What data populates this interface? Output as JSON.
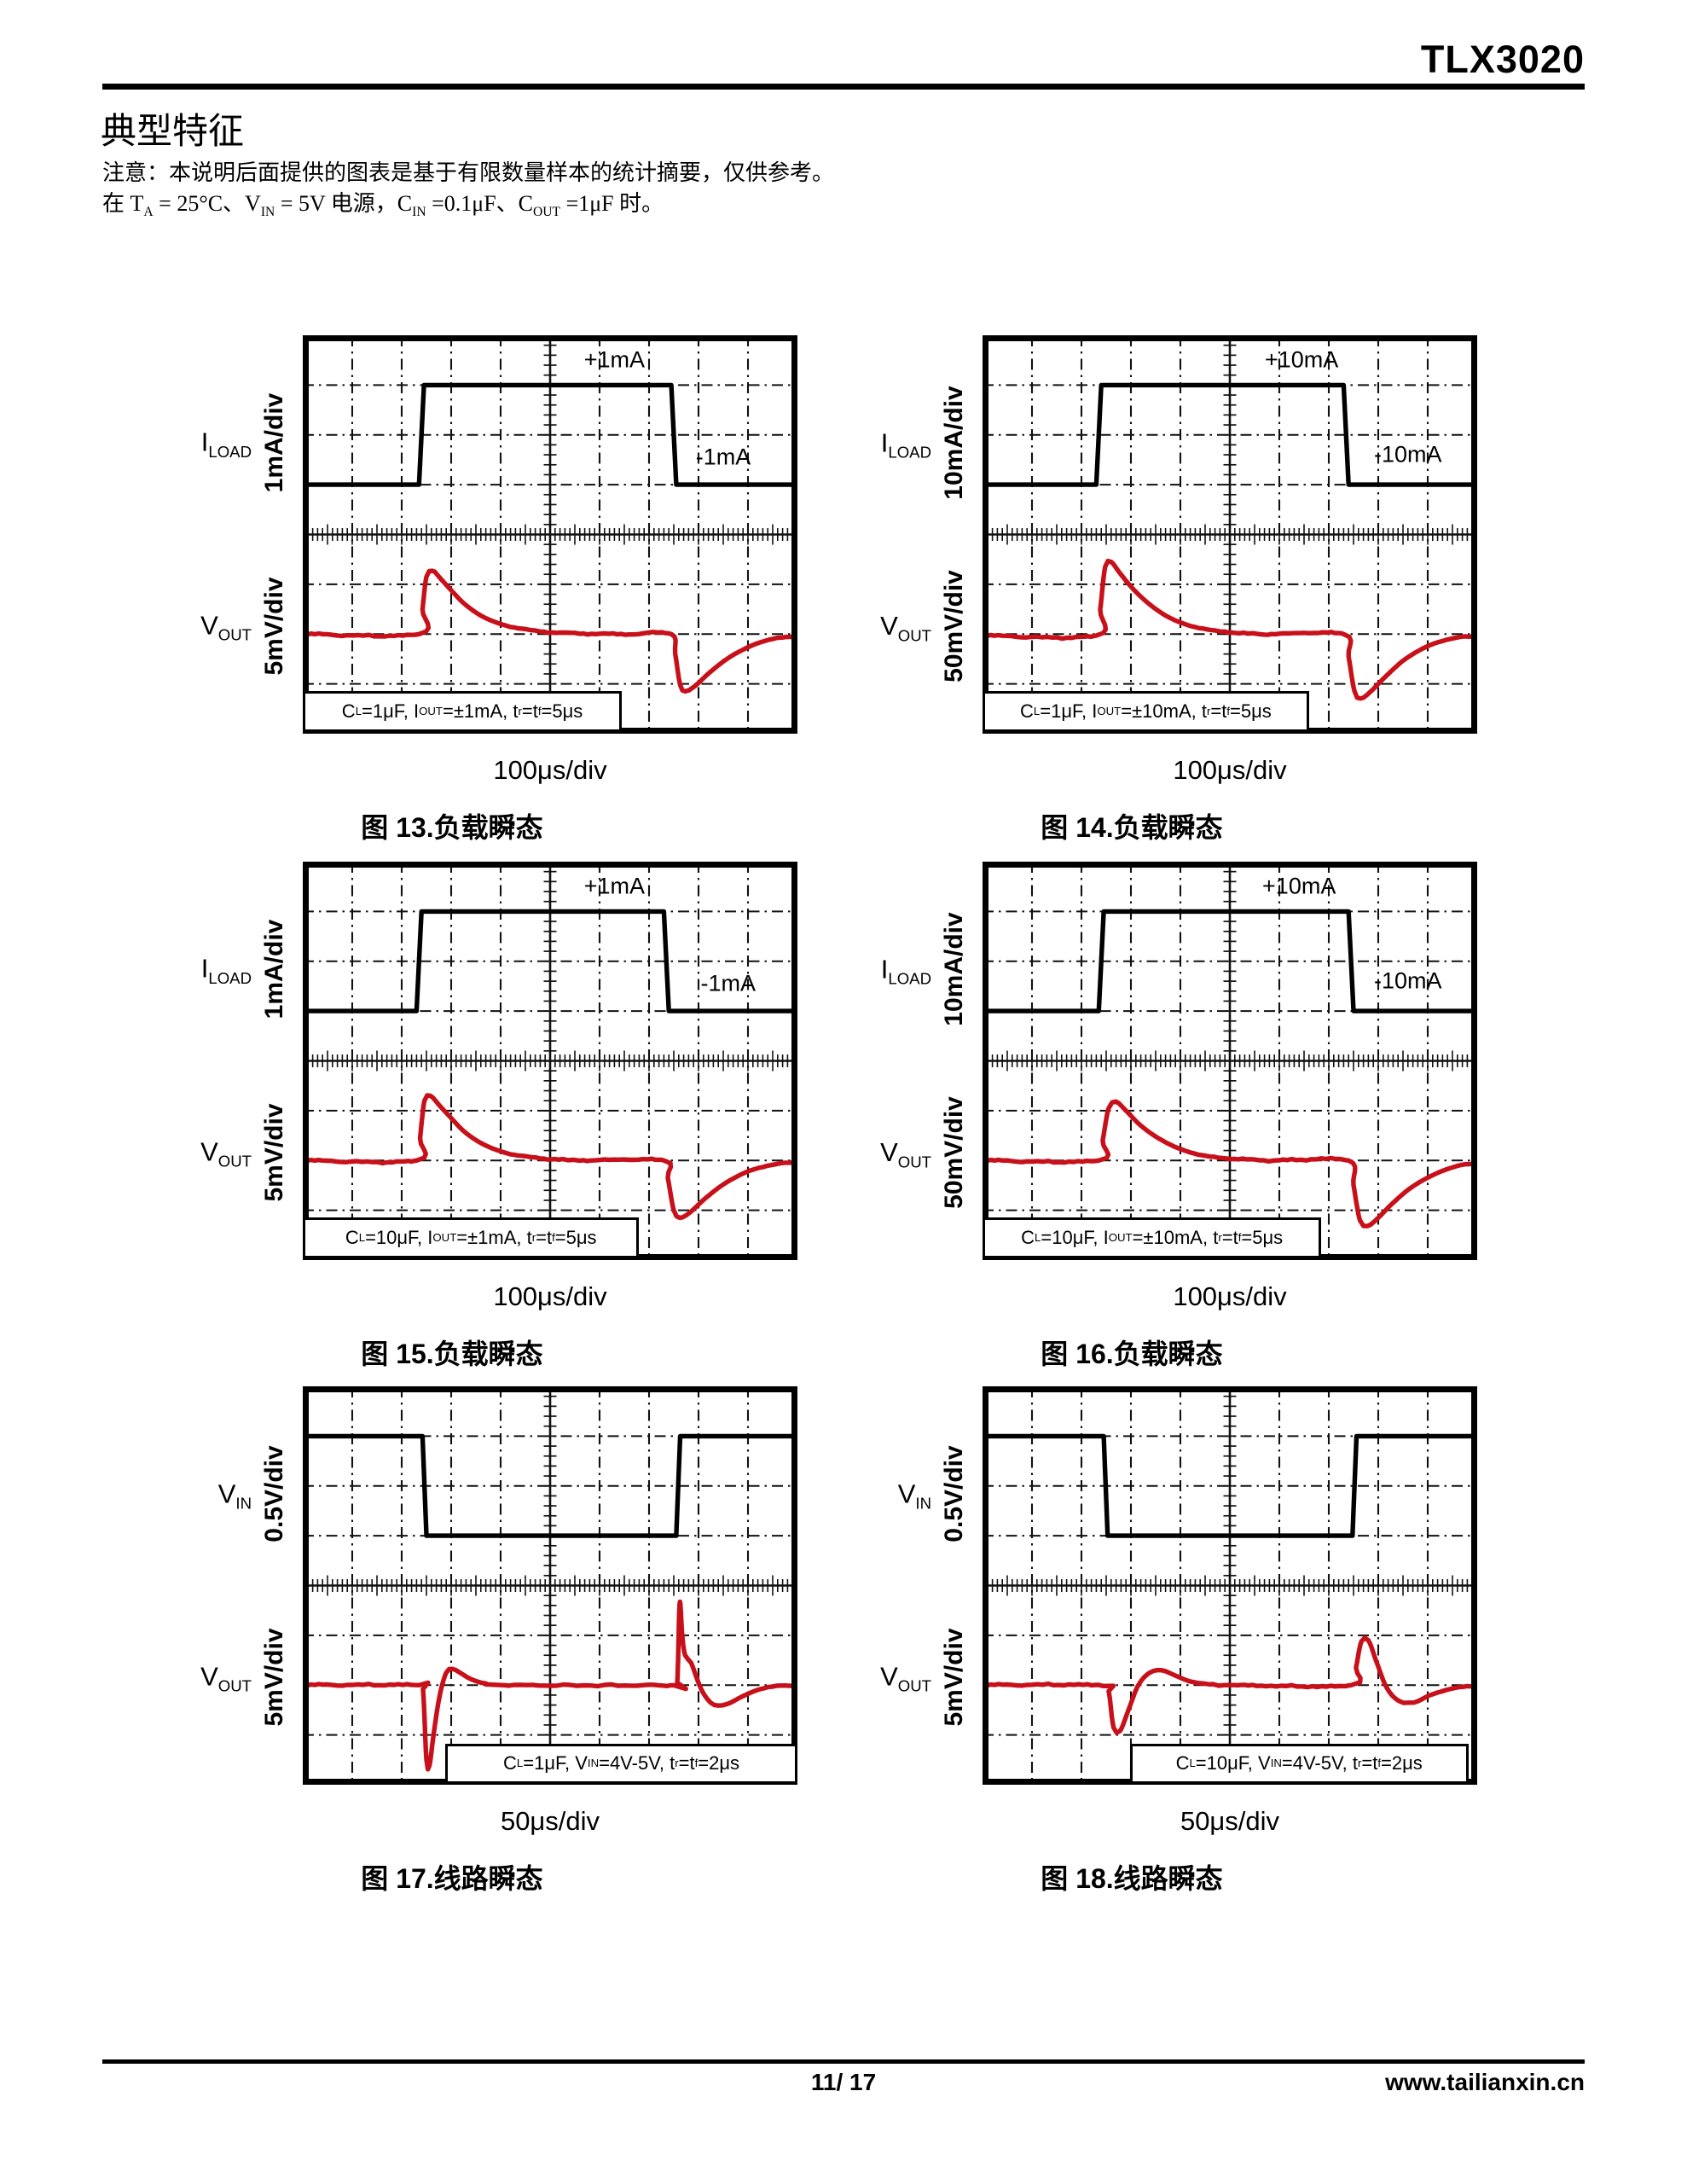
{
  "page": {
    "product": "TLX3020",
    "section_title": "典型特征",
    "note_line1": "注意：本说明后面提供的图表是基于有限数量样本的统计摘要，仅供参考。",
    "note_line2": "在 T_{A} = 25°C、V_{IN} = 5V 电源，C_{IN} =0.1μF、C_{OUT} =1μF 时。",
    "footer": {
      "page_number": "11/ 17",
      "website": "www.tailianxin.cn"
    }
  },
  "style": {
    "trace_red": "#c8101a",
    "trace_black": "#000000",
    "grid_color": "#111111",
    "background": "#ffffff"
  },
  "chart_data": [
    {
      "type": "line",
      "subtype": "oscilloscope",
      "caption": "图 13.负载瞬态",
      "x_scale": "100μs/div",
      "x_divisions": 10,
      "y_divisions": 8,
      "units": "grid divisions",
      "channels": [
        {
          "label": "I_{LOAD}",
          "scale": "1mA/div"
        },
        {
          "label": "V_{OUT}",
          "scale": "5mV/div"
        }
      ],
      "level_labels": [
        {
          "text": "+1mA",
          "x": 6.3,
          "y": 0.5
        },
        {
          "text": "-1mA",
          "x": 8.5,
          "y": 2.45
        }
      ],
      "annotation": {
        "text": "C_{L}=1μF, I_{OUT}=±1mA, t_{r}=t_{f}=5μs",
        "x0": 0,
        "x1": 6.45,
        "y0": 7.15,
        "y1": 7.96
      },
      "series": [
        {
          "name": "I_LOAD",
          "color": "black",
          "smooth": false,
          "noise": false,
          "points": [
            [
              0,
              3
            ],
            [
              2.35,
              3
            ],
            [
              2.45,
              1
            ],
            [
              7.45,
              1
            ],
            [
              7.55,
              3
            ],
            [
              10,
              3
            ]
          ]
        },
        {
          "name": "V_OUT",
          "color": "red",
          "smooth": true,
          "noise": true,
          "points": [
            [
              0,
              6
            ],
            [
              2.35,
              6
            ],
            [
              2.42,
              5.5
            ],
            [
              2.5,
              4.85
            ],
            [
              2.62,
              4.72
            ],
            [
              2.78,
              4.88
            ],
            [
              3.0,
              5.12
            ],
            [
              3.3,
              5.42
            ],
            [
              3.7,
              5.68
            ],
            [
              4.2,
              5.85
            ],
            [
              4.8,
              5.94
            ],
            [
              5.6,
              5.99
            ],
            [
              6.6,
              6
            ],
            [
              7.45,
              6
            ],
            [
              7.53,
              6.4
            ],
            [
              7.63,
              7.02
            ],
            [
              7.73,
              7.15
            ],
            [
              7.92,
              7.05
            ],
            [
              8.25,
              6.75
            ],
            [
              8.65,
              6.45
            ],
            [
              9.15,
              6.2
            ],
            [
              9.6,
              6.08
            ],
            [
              10,
              6.03
            ]
          ]
        }
      ]
    },
    {
      "type": "line",
      "subtype": "oscilloscope",
      "caption": "图 14.负载瞬态",
      "x_scale": "100μs/div",
      "x_divisions": 10,
      "y_divisions": 8,
      "units": "grid divisions",
      "channels": [
        {
          "label": "I_{LOAD}",
          "scale": "10mA/div"
        },
        {
          "label": "V_{OUT}",
          "scale": "50mV/div"
        }
      ],
      "level_labels": [
        {
          "text": "+10mA",
          "x": 6.45,
          "y": 0.5
        },
        {
          "text": "-10mA",
          "x": 8.6,
          "y": 2.4
        }
      ],
      "annotation": {
        "text": "C_{L}=1μF, I_{OUT}=±10mA, t_{r}=t_{f}=5μs",
        "x0": 0,
        "x1": 6.6,
        "y0": 7.15,
        "y1": 7.96
      },
      "series": [
        {
          "name": "I_LOAD",
          "color": "black",
          "smooth": false,
          "noise": false,
          "points": [
            [
              0,
              3
            ],
            [
              2.3,
              3
            ],
            [
              2.4,
              1
            ],
            [
              7.3,
              1
            ],
            [
              7.4,
              3
            ],
            [
              10,
              3
            ]
          ]
        },
        {
          "name": "V_OUT",
          "color": "red",
          "smooth": true,
          "noise": true,
          "points": [
            [
              0,
              6.03
            ],
            [
              2.3,
              6.03
            ],
            [
              2.38,
              5.5
            ],
            [
              2.48,
              4.65
            ],
            [
              2.6,
              4.55
            ],
            [
              2.78,
              4.78
            ],
            [
              3.05,
              5.1
            ],
            [
              3.4,
              5.42
            ],
            [
              3.8,
              5.68
            ],
            [
              4.3,
              5.86
            ],
            [
              4.9,
              5.95
            ],
            [
              5.7,
              6
            ],
            [
              7.3,
              6
            ],
            [
              7.4,
              6.45
            ],
            [
              7.52,
              7.15
            ],
            [
              7.64,
              7.3
            ],
            [
              7.85,
              7.15
            ],
            [
              8.15,
              6.85
            ],
            [
              8.55,
              6.5
            ],
            [
              9.05,
              6.22
            ],
            [
              9.55,
              6.08
            ],
            [
              10,
              6.03
            ]
          ]
        }
      ]
    },
    {
      "type": "line",
      "subtype": "oscilloscope",
      "caption": "图 15.负载瞬态",
      "x_scale": "100μs/div",
      "x_divisions": 10,
      "y_divisions": 8,
      "units": "grid divisions",
      "channels": [
        {
          "label": "I_{LOAD}",
          "scale": "1mA/div"
        },
        {
          "label": "V_{OUT}",
          "scale": "5mV/div"
        }
      ],
      "level_labels": [
        {
          "text": "+1mA",
          "x": 6.3,
          "y": 0.5
        },
        {
          "text": "-1mA",
          "x": 8.6,
          "y": 2.45
        }
      ],
      "annotation": {
        "text": "C_{L}=10μF, I_{OUT}=±1mA, t_{r}=t_{f}=5μs",
        "x0": 0,
        "x1": 6.8,
        "y0": 7.15,
        "y1": 7.96
      },
      "series": [
        {
          "name": "I_LOAD",
          "color": "black",
          "smooth": false,
          "noise": false,
          "points": [
            [
              0,
              3
            ],
            [
              2.3,
              3
            ],
            [
              2.4,
              1
            ],
            [
              7.3,
              1
            ],
            [
              7.4,
              3
            ],
            [
              10,
              3
            ]
          ]
        },
        {
          "name": "V_OUT",
          "color": "red",
          "smooth": true,
          "noise": true,
          "points": [
            [
              0,
              6
            ],
            [
              2.3,
              6
            ],
            [
              2.37,
              5.55
            ],
            [
              2.46,
              4.8
            ],
            [
              2.58,
              4.7
            ],
            [
              2.75,
              4.88
            ],
            [
              3.0,
              5.15
            ],
            [
              3.3,
              5.45
            ],
            [
              3.7,
              5.7
            ],
            [
              4.2,
              5.87
            ],
            [
              4.8,
              5.95
            ],
            [
              5.6,
              6
            ],
            [
              7.3,
              6
            ],
            [
              7.38,
              6.35
            ],
            [
              7.5,
              7.0
            ],
            [
              7.62,
              7.15
            ],
            [
              7.82,
              7.05
            ],
            [
              8.15,
              6.75
            ],
            [
              8.55,
              6.45
            ],
            [
              9.05,
              6.2
            ],
            [
              9.55,
              6.08
            ],
            [
              10,
              6.02
            ]
          ]
        }
      ]
    },
    {
      "type": "line",
      "subtype": "oscilloscope",
      "caption": "图 16.负载瞬态",
      "x_scale": "100μs/div",
      "x_divisions": 10,
      "y_divisions": 8,
      "units": "grid divisions",
      "channels": [
        {
          "label": "I_{LOAD}",
          "scale": "10mA/div"
        },
        {
          "label": "V_{OUT}",
          "scale": "50mV/div"
        }
      ],
      "level_labels": [
        {
          "text": "+10mA",
          "x": 6.4,
          "y": 0.5
        },
        {
          "text": "-10mA",
          "x": 8.6,
          "y": 2.4
        }
      ],
      "annotation": {
        "text": "C_{L}=10μF, I_{OUT}=±10mA, t_{r}=t_{f}=5μs",
        "x0": 0,
        "x1": 6.85,
        "y0": 7.15,
        "y1": 7.96
      },
      "series": [
        {
          "name": "I_LOAD",
          "color": "black",
          "smooth": false,
          "noise": false,
          "points": [
            [
              0,
              3
            ],
            [
              2.35,
              3
            ],
            [
              2.45,
              1
            ],
            [
              7.4,
              1
            ],
            [
              7.5,
              3
            ],
            [
              10,
              3
            ]
          ]
        },
        {
          "name": "V_OUT",
          "color": "red",
          "smooth": true,
          "noise": true,
          "points": [
            [
              0,
              6
            ],
            [
              2.35,
              6
            ],
            [
              2.43,
              5.6
            ],
            [
              2.55,
              4.95
            ],
            [
              2.7,
              4.82
            ],
            [
              2.9,
              5.0
            ],
            [
              3.2,
              5.3
            ],
            [
              3.55,
              5.55
            ],
            [
              3.95,
              5.75
            ],
            [
              4.45,
              5.9
            ],
            [
              5.1,
              5.97
            ],
            [
              6.0,
              6
            ],
            [
              7.4,
              6
            ],
            [
              7.5,
              6.5
            ],
            [
              7.63,
              7.2
            ],
            [
              7.78,
              7.32
            ],
            [
              8.0,
              7.15
            ],
            [
              8.3,
              6.85
            ],
            [
              8.7,
              6.52
            ],
            [
              9.2,
              6.25
            ],
            [
              9.65,
              6.1
            ],
            [
              10,
              6.05
            ]
          ]
        }
      ]
    },
    {
      "type": "line",
      "subtype": "oscilloscope",
      "caption": "图 17.线路瞬态",
      "x_scale": "50μs/div",
      "x_divisions": 10,
      "y_divisions": 8,
      "units": "grid divisions",
      "channels": [
        {
          "label": "V_{IN}",
          "scale": "0.5V/div"
        },
        {
          "label": "V_{OUT}",
          "scale": "5mV/div"
        }
      ],
      "level_labels": [],
      "annotation": {
        "text": "C_{L}=1μF, V_{IN}=4V-5V, t_{r}=t_{f}=2μs",
        "x0": 2.88,
        "x1": 10,
        "y0": 7.18,
        "y1": 7.98
      },
      "series": [
        {
          "name": "V_IN",
          "color": "black",
          "smooth": false,
          "noise": false,
          "points": [
            [
              0,
              1
            ],
            [
              2.42,
              1
            ],
            [
              2.5,
              3
            ],
            [
              7.55,
              3
            ],
            [
              7.63,
              1
            ],
            [
              10,
              1
            ]
          ]
        },
        {
          "name": "V_OUT",
          "color": "red",
          "smooth": true,
          "noise": true,
          "points": [
            [
              0,
              6
            ],
            [
              2.35,
              6
            ],
            [
              2.43,
              6.08
            ],
            [
              2.5,
              7.5
            ],
            [
              2.56,
              7.62
            ],
            [
              2.65,
              6.95
            ],
            [
              2.77,
              6.2
            ],
            [
              2.9,
              5.75
            ],
            [
              3.02,
              5.67
            ],
            [
              3.18,
              5.75
            ],
            [
              3.4,
              5.88
            ],
            [
              3.7,
              5.97
            ],
            [
              4.1,
              6
            ],
            [
              7.5,
              6
            ],
            [
              7.57,
              5.95
            ],
            [
              7.62,
              4.35
            ],
            [
              7.67,
              5.0
            ],
            [
              7.73,
              5.4
            ],
            [
              7.85,
              5.55
            ],
            [
              7.98,
              5.9
            ],
            [
              8.12,
              6.2
            ],
            [
              8.32,
              6.4
            ],
            [
              8.58,
              6.38
            ],
            [
              8.9,
              6.22
            ],
            [
              9.25,
              6.08
            ],
            [
              9.65,
              6.02
            ],
            [
              10,
              6
            ]
          ]
        }
      ]
    },
    {
      "type": "line",
      "subtype": "oscilloscope",
      "caption": "图 18.线路瞬态",
      "x_scale": "50μs/div",
      "x_divisions": 10,
      "y_divisions": 8,
      "units": "grid divisions",
      "channels": [
        {
          "label": "V_{IN}",
          "scale": "0.5V/div"
        },
        {
          "label": "V_{OUT}",
          "scale": "5mV/div"
        }
      ],
      "level_labels": [],
      "annotation": {
        "text": "C_{L}=10μF, V_{IN}=4V-5V, t_{r}=t_{f}=2μs",
        "x0": 2.98,
        "x1": 9.82,
        "y0": 7.18,
        "y1": 7.98
      },
      "series": [
        {
          "name": "V_IN",
          "color": "black",
          "smooth": false,
          "noise": false,
          "points": [
            [
              0,
              1
            ],
            [
              2.45,
              1
            ],
            [
              2.53,
              3
            ],
            [
              7.48,
              3
            ],
            [
              7.56,
              1
            ],
            [
              10,
              1
            ]
          ]
        },
        {
          "name": "V_OUT",
          "color": "red",
          "smooth": true,
          "noise": true,
          "points": [
            [
              0,
              6
            ],
            [
              2.45,
              6
            ],
            [
              2.55,
              6.12
            ],
            [
              2.65,
              6.85
            ],
            [
              2.78,
              6.92
            ],
            [
              2.95,
              6.5
            ],
            [
              3.15,
              6.0
            ],
            [
              3.38,
              5.75
            ],
            [
              3.62,
              5.7
            ],
            [
              3.88,
              5.8
            ],
            [
              4.18,
              5.92
            ],
            [
              4.55,
              5.98
            ],
            [
              5.1,
              6
            ],
            [
              7.45,
              6
            ],
            [
              7.55,
              5.65
            ],
            [
              7.66,
              5.12
            ],
            [
              7.8,
              5.1
            ],
            [
              7.97,
              5.55
            ],
            [
              8.17,
              6.05
            ],
            [
              8.42,
              6.32
            ],
            [
              8.72,
              6.35
            ],
            [
              9.05,
              6.2
            ],
            [
              9.45,
              6.08
            ],
            [
              9.8,
              6.02
            ],
            [
              10,
              6.02
            ]
          ]
        }
      ]
    }
  ]
}
